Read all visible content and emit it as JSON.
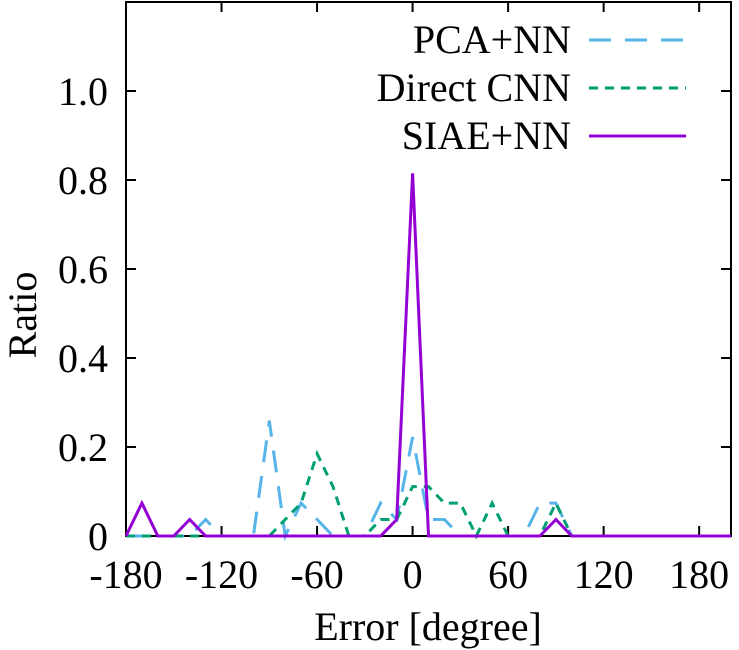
{
  "chart_data": {
    "type": "line",
    "title": "",
    "xlabel": "Error [degree]",
    "ylabel": "Ratio",
    "xlim": [
      -180,
      200
    ],
    "ylim": [
      0,
      1.2
    ],
    "xticks": [
      -180,
      -120,
      -60,
      0,
      60,
      120,
      180
    ],
    "xtick_labels": [
      "-180",
      "-120",
      "-60",
      "0",
      "60",
      "120",
      "180"
    ],
    "yticks": [
      0,
      0.2,
      0.4,
      0.6,
      0.8,
      1.0
    ],
    "ytick_labels": [
      "0",
      "0.2",
      "0.4",
      "0.6",
      "0.8",
      "1.0"
    ],
    "grid": false,
    "legend_position": "top-right",
    "series": [
      {
        "name": "PCA+NN",
        "color": "#56b4e9",
        "dash": "long-dash",
        "x": [
          -180,
          -170,
          -160,
          -150,
          -140,
          -130,
          -120,
          -110,
          -100,
          -90,
          -80,
          -70,
          -60,
          -50,
          -40,
          -30,
          -20,
          -10,
          0,
          10,
          20,
          30,
          40,
          50,
          60,
          70,
          80,
          90,
          100,
          110,
          120,
          130,
          140,
          150,
          160,
          170,
          180,
          190,
          200
        ],
        "y": [
          0,
          0,
          0,
          0,
          0,
          0.037,
          0,
          0,
          0,
          0.259,
          0,
          0.074,
          0.037,
          0,
          0,
          0,
          0.074,
          0.037,
          0.222,
          0.037,
          0.037,
          0,
          0,
          0,
          0,
          0,
          0.074,
          0.074,
          0,
          0,
          0,
          0,
          0,
          0,
          0,
          0,
          0,
          0,
          0
        ]
      },
      {
        "name": "Direct CNN",
        "color": "#009e73",
        "dash": "short-dash",
        "x": [
          -180,
          -170,
          -160,
          -150,
          -140,
          -130,
          -120,
          -110,
          -100,
          -90,
          -80,
          -70,
          -60,
          -50,
          -40,
          -30,
          -20,
          -10,
          0,
          10,
          20,
          30,
          40,
          50,
          60,
          70,
          80,
          90,
          100,
          110,
          120,
          130,
          140,
          150,
          160,
          170,
          180,
          190,
          200
        ],
        "y": [
          0,
          0,
          0,
          0,
          0,
          0,
          0,
          0,
          0,
          0,
          0.037,
          0.074,
          0.185,
          0.111,
          0,
          0,
          0.037,
          0.037,
          0.111,
          0.111,
          0.074,
          0.074,
          0,
          0.074,
          0,
          0,
          0,
          0.074,
          0,
          0,
          0,
          0,
          0,
          0,
          0,
          0,
          0,
          0,
          0
        ]
      },
      {
        "name": "SIAE+NN",
        "color": "#9400d3",
        "dash": "solid",
        "x": [
          -180,
          -170,
          -160,
          -150,
          -140,
          -130,
          -120,
          -110,
          -100,
          -90,
          -80,
          -70,
          -60,
          -50,
          -40,
          -30,
          -20,
          -10,
          0,
          10,
          20,
          30,
          40,
          50,
          60,
          70,
          80,
          90,
          100,
          110,
          120,
          130,
          140,
          150,
          160,
          170,
          180,
          190,
          200
        ],
        "y": [
          0,
          0.074,
          0,
          0,
          0.037,
          0,
          0,
          0,
          0,
          0,
          0,
          0,
          0,
          0,
          0,
          0,
          0,
          0.037,
          0.815,
          0,
          0,
          0,
          0,
          0,
          0,
          0,
          0,
          0.037,
          0,
          0,
          0,
          0,
          0,
          0,
          0,
          0,
          0,
          0,
          0
        ]
      }
    ]
  }
}
